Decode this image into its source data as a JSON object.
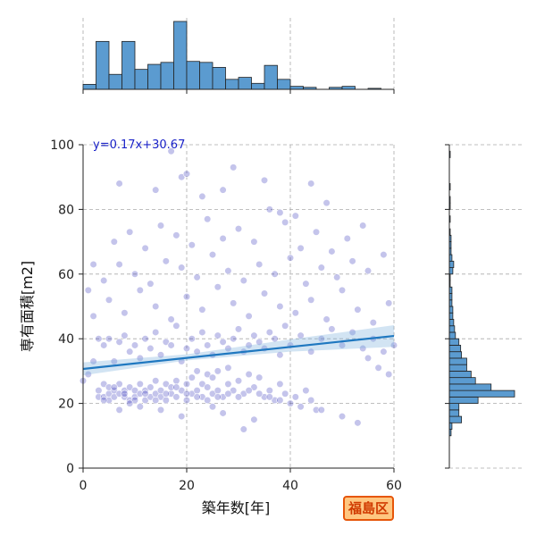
{
  "chart_data": {
    "type": "scatter",
    "xlabel": "築年数[年]",
    "ylabel": "専有面積[m2]",
    "xlim": [
      0,
      60
    ],
    "ylim": [
      0,
      100
    ],
    "xticks": [
      0,
      20,
      40,
      60
    ],
    "yticks": [
      0,
      20,
      40,
      60,
      80,
      100
    ],
    "grid": true,
    "regression": {
      "label": "y=0.17x+30.67",
      "slope": 0.17,
      "intercept": 30.67
    },
    "badge": "福島区",
    "top_histogram": {
      "bin_edges": [
        0,
        2.5,
        5,
        7.5,
        10,
        12.5,
        15,
        17.5,
        20,
        22.5,
        25,
        27.5,
        30,
        32.5,
        35,
        37.5,
        40,
        42.5,
        45,
        47.5,
        50,
        52.5,
        55,
        57.5,
        60
      ],
      "counts": [
        5,
        48,
        15,
        48,
        20,
        25,
        27,
        68,
        28,
        27,
        22,
        10,
        12,
        6,
        24,
        10,
        3,
        2,
        0,
        2,
        3,
        0,
        1,
        0
      ]
    },
    "right_histogram": {
      "bin_edges": [
        10,
        12,
        14,
        16,
        18,
        20,
        22,
        24,
        26,
        28,
        30,
        32,
        34,
        36,
        38,
        40,
        42,
        44,
        46,
        48,
        50,
        52,
        54,
        56,
        58,
        60,
        62,
        64,
        66,
        68,
        70,
        72,
        74,
        76,
        78,
        80,
        82,
        84,
        86,
        88,
        90,
        92,
        94,
        96,
        98,
        100
      ],
      "counts": [
        2,
        3,
        14,
        11,
        11,
        33,
        75,
        48,
        30,
        25,
        20,
        20,
        14,
        13,
        11,
        7,
        6,
        5,
        4,
        4,
        3,
        3,
        3,
        1,
        1,
        4,
        5,
        3,
        2,
        2,
        2,
        1,
        0,
        1,
        0,
        1,
        1,
        0,
        1,
        0,
        0,
        0,
        0,
        1,
        0
      ]
    },
    "points": [
      [
        3,
        22
      ],
      [
        3,
        24
      ],
      [
        4,
        22
      ],
      [
        4,
        26
      ],
      [
        5,
        21
      ],
      [
        5,
        23
      ],
      [
        5,
        25
      ],
      [
        6,
        22
      ],
      [
        6,
        24
      ],
      [
        7,
        23
      ],
      [
        7,
        26
      ],
      [
        8,
        22
      ],
      [
        8,
        24
      ],
      [
        9,
        21
      ],
      [
        9,
        25
      ],
      [
        10,
        22
      ],
      [
        10,
        24
      ],
      [
        11,
        23
      ],
      [
        11,
        26
      ],
      [
        12,
        21
      ],
      [
        12,
        24
      ],
      [
        13,
        22
      ],
      [
        13,
        25
      ],
      [
        14,
        23
      ],
      [
        14,
        27
      ],
      [
        15,
        22
      ],
      [
        15,
        24
      ],
      [
        16,
        21
      ],
      [
        16,
        26
      ],
      [
        17,
        23
      ],
      [
        17,
        25
      ],
      [
        18,
        22
      ],
      [
        18,
        27
      ],
      [
        19,
        24
      ],
      [
        20,
        21
      ],
      [
        20,
        26
      ],
      [
        21,
        23
      ],
      [
        21,
        28
      ],
      [
        22,
        24
      ],
      [
        22,
        30
      ],
      [
        23,
        22
      ],
      [
        23,
        26
      ],
      [
        24,
        25
      ],
      [
        24,
        29
      ],
      [
        25,
        23
      ],
      [
        25,
        28
      ],
      [
        26,
        24
      ],
      [
        26,
        30
      ],
      [
        27,
        22
      ],
      [
        28,
        26
      ],
      [
        28,
        31
      ],
      [
        29,
        24
      ],
      [
        30,
        27
      ],
      [
        31,
        23
      ],
      [
        32,
        29
      ],
      [
        33,
        25
      ],
      [
        34,
        28
      ],
      [
        35,
        22
      ],
      [
        36,
        24
      ],
      [
        37,
        21
      ],
      [
        38,
        26
      ],
      [
        39,
        23
      ],
      [
        40,
        20
      ],
      [
        41,
        22
      ],
      [
        42,
        19
      ],
      [
        43,
        24
      ],
      [
        44,
        21
      ],
      [
        45,
        18
      ],
      [
        4,
        21
      ],
      [
        6,
        25
      ],
      [
        8,
        23
      ],
      [
        10,
        21
      ],
      [
        12,
        23
      ],
      [
        14,
        21
      ],
      [
        16,
        23
      ],
      [
        18,
        25
      ],
      [
        20,
        23
      ],
      [
        22,
        22
      ],
      [
        24,
        21
      ],
      [
        26,
        22
      ],
      [
        28,
        23
      ],
      [
        30,
        22
      ],
      [
        32,
        24
      ],
      [
        34,
        23
      ],
      [
        36,
        22
      ],
      [
        38,
        21
      ],
      [
        3,
        40
      ],
      [
        4,
        38
      ],
      [
        5,
        40
      ],
      [
        6,
        33
      ],
      [
        7,
        39
      ],
      [
        8,
        41
      ],
      [
        9,
        36
      ],
      [
        10,
        38
      ],
      [
        11,
        34
      ],
      [
        12,
        40
      ],
      [
        13,
        37
      ],
      [
        14,
        42
      ],
      [
        15,
        35
      ],
      [
        16,
        39
      ],
      [
        17,
        38
      ],
      [
        18,
        44
      ],
      [
        19,
        33
      ],
      [
        20,
        37
      ],
      [
        21,
        40
      ],
      [
        22,
        36
      ],
      [
        23,
        42
      ],
      [
        24,
        38
      ],
      [
        25,
        35
      ],
      [
        26,
        41
      ],
      [
        27,
        39
      ],
      [
        28,
        37
      ],
      [
        29,
        40
      ],
      [
        30,
        43
      ],
      [
        31,
        36
      ],
      [
        32,
        38
      ],
      [
        33,
        41
      ],
      [
        34,
        39
      ],
      [
        35,
        37
      ],
      [
        36,
        42
      ],
      [
        37,
        40
      ],
      [
        38,
        35
      ],
      [
        39,
        44
      ],
      [
        40,
        38
      ],
      [
        42,
        41
      ],
      [
        44,
        36
      ],
      [
        46,
        40
      ],
      [
        48,
        43
      ],
      [
        50,
        38
      ],
      [
        52,
        42
      ],
      [
        54,
        37
      ],
      [
        56,
        40
      ],
      [
        58,
        36
      ],
      [
        2,
        47
      ],
      [
        5,
        52
      ],
      [
        8,
        48
      ],
      [
        11,
        55
      ],
      [
        14,
        50
      ],
      [
        17,
        46
      ],
      [
        20,
        53
      ],
      [
        23,
        49
      ],
      [
        26,
        56
      ],
      [
        29,
        51
      ],
      [
        32,
        47
      ],
      [
        35,
        54
      ],
      [
        38,
        50
      ],
      [
        41,
        48
      ],
      [
        44,
        52
      ],
      [
        47,
        46
      ],
      [
        50,
        55
      ],
      [
        53,
        49
      ],
      [
        56,
        45
      ],
      [
        59,
        51
      ],
      [
        4,
        58
      ],
      [
        7,
        63
      ],
      [
        10,
        60
      ],
      [
        13,
        57
      ],
      [
        16,
        64
      ],
      [
        19,
        62
      ],
      [
        22,
        59
      ],
      [
        25,
        66
      ],
      [
        28,
        61
      ],
      [
        31,
        58
      ],
      [
        34,
        63
      ],
      [
        37,
        60
      ],
      [
        40,
        65
      ],
      [
        43,
        57
      ],
      [
        46,
        62
      ],
      [
        49,
        59
      ],
      [
        52,
        64
      ],
      [
        55,
        61
      ],
      [
        58,
        66
      ],
      [
        6,
        70
      ],
      [
        9,
        73
      ],
      [
        12,
        68
      ],
      [
        15,
        75
      ],
      [
        18,
        72
      ],
      [
        21,
        69
      ],
      [
        24,
        77
      ],
      [
        27,
        71
      ],
      [
        30,
        74
      ],
      [
        33,
        70
      ],
      [
        36,
        80
      ],
      [
        39,
        76
      ],
      [
        42,
        68
      ],
      [
        45,
        73
      ],
      [
        48,
        67
      ],
      [
        51,
        71
      ],
      [
        7,
        88
      ],
      [
        14,
        86
      ],
      [
        19,
        90
      ],
      [
        23,
        84
      ],
      [
        29,
        93
      ],
      [
        35,
        89
      ],
      [
        41,
        78
      ],
      [
        47,
        82
      ],
      [
        54,
        75
      ],
      [
        17,
        98
      ],
      [
        20,
        91
      ],
      [
        27,
        86
      ],
      [
        38,
        79
      ],
      [
        44,
        88
      ],
      [
        2,
        63
      ],
      [
        1,
        55
      ],
      [
        1,
        29
      ],
      [
        2,
        33
      ],
      [
        0,
        27
      ],
      [
        59,
        29
      ],
      [
        57,
        31
      ],
      [
        55,
        34
      ],
      [
        53,
        14
      ],
      [
        50,
        16
      ],
      [
        46,
        18
      ],
      [
        31,
        12
      ],
      [
        33,
        15
      ],
      [
        27,
        17
      ],
      [
        25,
        19
      ],
      [
        19,
        16
      ],
      [
        15,
        18
      ],
      [
        11,
        19
      ],
      [
        9,
        20
      ],
      [
        7,
        18
      ],
      [
        60,
        38
      ]
    ]
  }
}
